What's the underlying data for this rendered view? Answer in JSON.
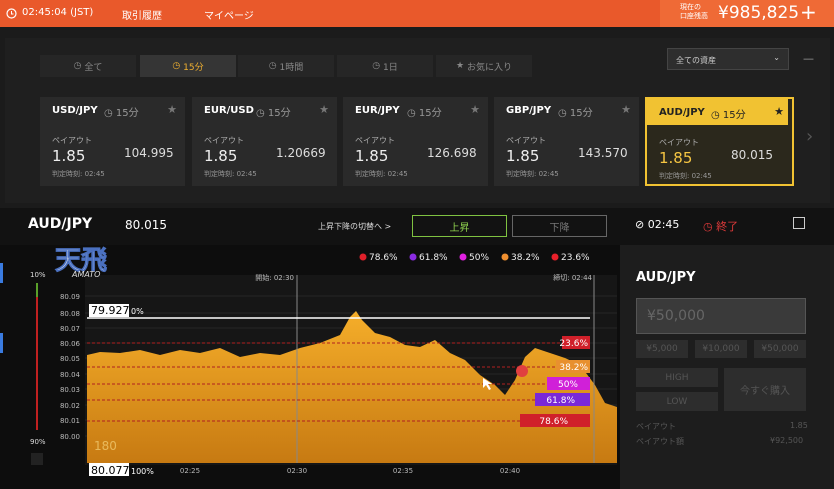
{
  "header": {
    "time": "02:45:04 (JST)",
    "nav": [
      "取引履歴",
      "マイページ"
    ],
    "balance_label": [
      "現在の",
      "口座残高"
    ],
    "balance": "¥985,825",
    "add": "+"
  },
  "tabs": [
    "全て",
    "15分",
    "1時間",
    "1日",
    "お気に入り"
  ],
  "asset_select": "全ての資産",
  "minimize": "—",
  "cards": [
    {
      "pair": "USD/JPY",
      "period": "15分",
      "payout_label": "ペイアウト",
      "payout": "1.85",
      "rate": "104.995",
      "deadline": "判定時刻: 02:45"
    },
    {
      "pair": "EUR/USD",
      "period": "15分",
      "payout_label": "ペイアウト",
      "payout": "1.85",
      "rate": "1.20669",
      "deadline": "判定時刻: 02:45"
    },
    {
      "pair": "EUR/JPY",
      "period": "15分",
      "payout_label": "ペイアウト",
      "payout": "1.85",
      "rate": "126.698",
      "deadline": "判定時刻: 02:45"
    },
    {
      "pair": "GBP/JPY",
      "period": "15分",
      "payout_label": "ペイアウト",
      "payout": "1.85",
      "rate": "143.570",
      "deadline": "判定時刻: 02:45"
    },
    {
      "pair": "AUD/JPY",
      "period": "15分",
      "payout_label": "ペイアウト",
      "payout": "1.85",
      "rate": "80.015",
      "deadline": "判定時刻: 02:45"
    }
  ],
  "trade_bar": {
    "pair": "AUD/JPY",
    "rate": "80.015",
    "toggle": "上昇下降の切替へ >",
    "up": "上昇",
    "down": "下降",
    "time": "02:45",
    "end": "終了"
  },
  "chart": {
    "logo": "天飛",
    "logo_sub": "AMATO",
    "fib_legend": [
      "78.6%",
      "61.8%",
      "50%",
      "38.2%",
      "23.6%"
    ],
    "slider_top": "10%",
    "slider_bottom": "90%",
    "y_labels": [
      "80.09",
      "80.08",
      "80.07",
      "80.06",
      "80.05",
      "80.04",
      "80.03",
      "80.02",
      "80.01",
      "80.00"
    ],
    "x_labels": [
      "02:25",
      "02:30",
      "02:35",
      "02:40"
    ],
    "start": "開始: 02:30",
    "close": "締切: 02:44",
    "top_price": "79.927",
    "top_pct": "0%",
    "bottom_price": "80.077",
    "bottom_pct": "100%",
    "fib_labels": [
      "23.6%",
      "38.2%",
      "50%",
      "61.8%",
      "78.6%"
    ],
    "faint": "180"
  },
  "panel": {
    "pair": "AUD/JPY",
    "amount": "¥50,000",
    "presets": [
      "¥5,000",
      "¥10,000",
      "¥50,000"
    ],
    "high": "HIGH",
    "low": "LOW",
    "buy": "今すぐ購入",
    "payout_label": "ペイアウト",
    "payout": "1.85",
    "payout_amount_label": "ペイアウト額",
    "payout_amount": "¥92,500"
  }
}
